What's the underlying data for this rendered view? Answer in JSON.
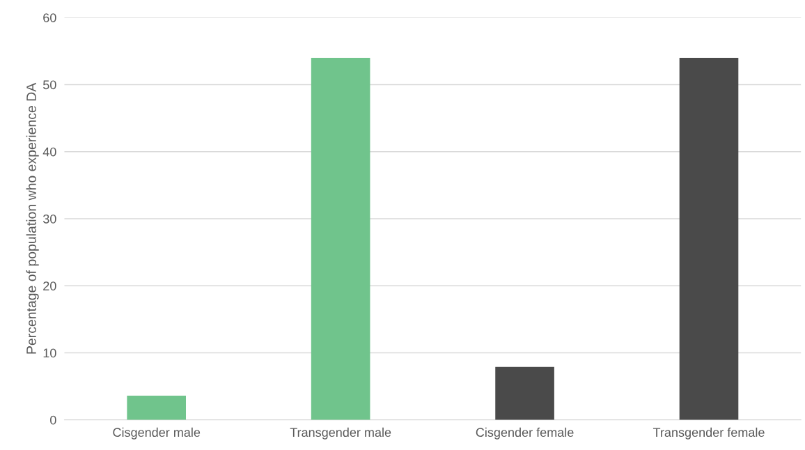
{
  "chart_data": {
    "type": "bar",
    "ylabel": "Percentage of population who experience DA",
    "categories": [
      "Cisgender male",
      "Transgender male",
      "Cisgender female",
      "Transgender female"
    ],
    "values": [
      3.6,
      54,
      7.9,
      54
    ],
    "colors": [
      "#70c48c",
      "#70c48c",
      "#4a4a4a",
      "#4a4a4a"
    ],
    "ylim": [
      0,
      60
    ],
    "yticks": [
      0,
      10,
      20,
      30,
      40,
      50,
      60
    ],
    "grid": "y"
  }
}
